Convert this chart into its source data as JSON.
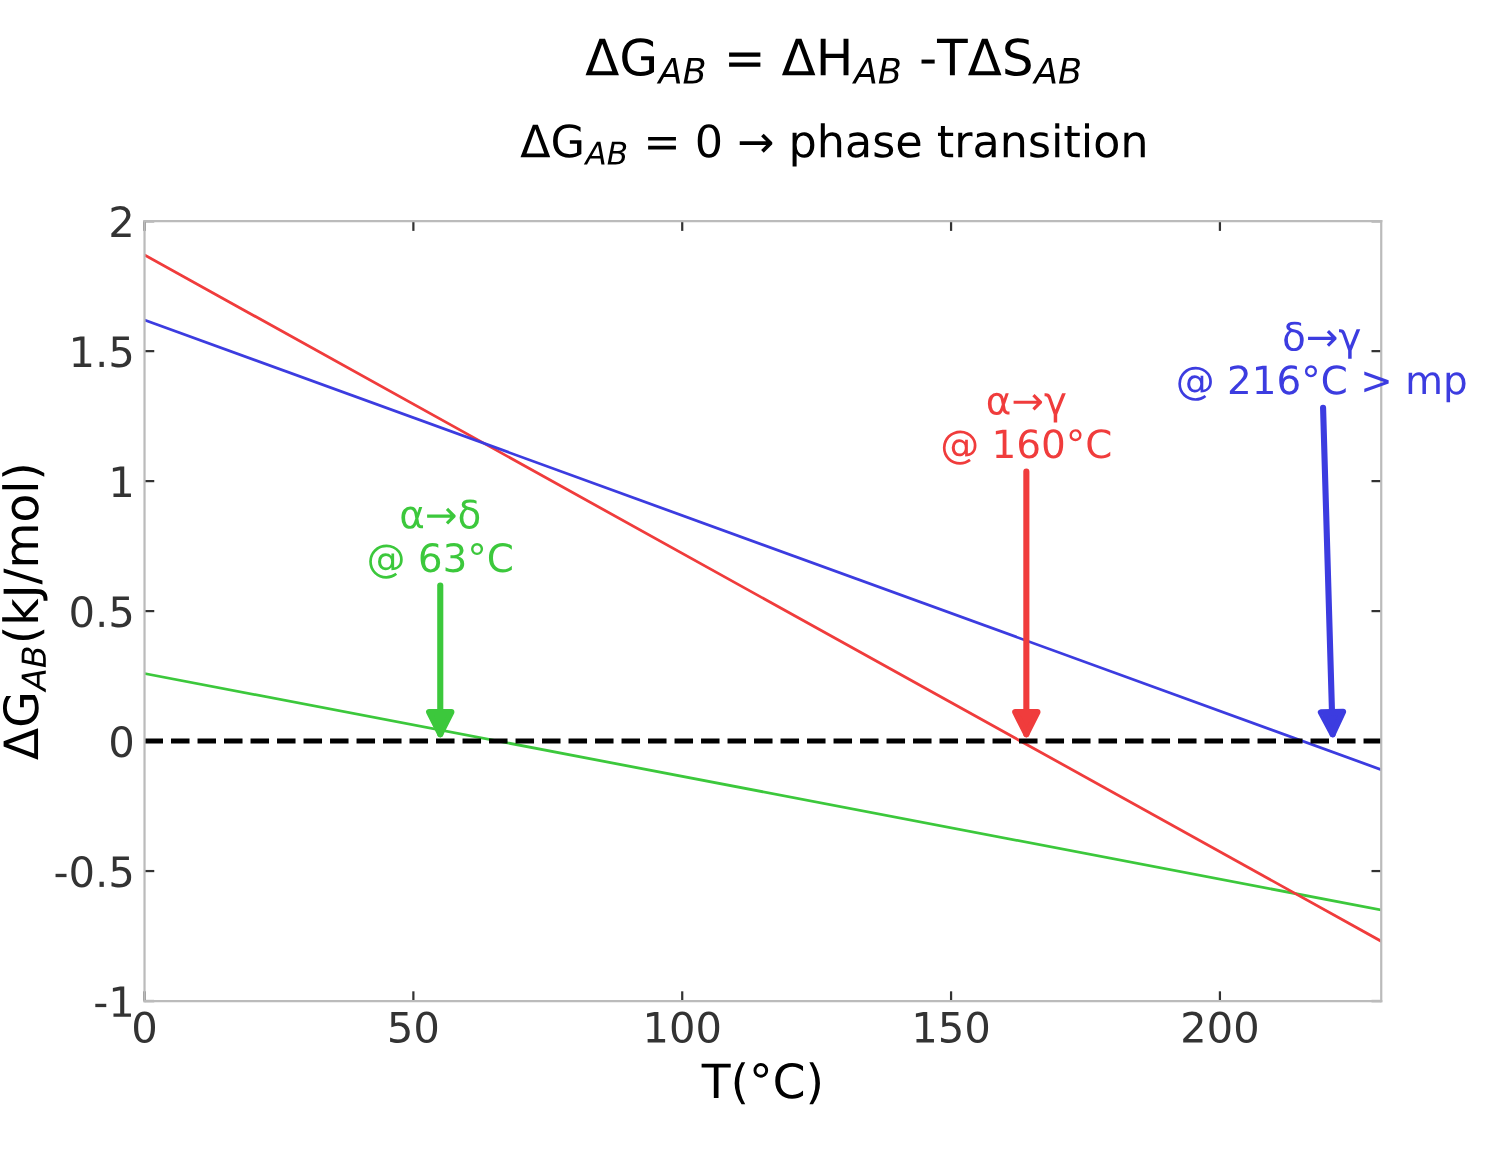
{
  "chart_data": {
    "type": "line",
    "title": "ΔG$_{AB}$ = ΔH$_{AB}$ -TΔS$_{AB}$",
    "subtitle": "ΔG$_{AB}$ = 0 → phase transition",
    "xlabel": "T(°C)",
    "ylabel": "ΔG$_{AB}$(kJ/mol)",
    "x": [
      0,
      230
    ],
    "series": [
      {
        "color": "#3cc83c",
        "values": [
          0.26,
          -0.65
        ]
      },
      {
        "color": "#f03c3c",
        "values": [
          1.87,
          -0.77
        ]
      },
      {
        "color": "#3c3ce0",
        "values": [
          1.62,
          -0.11
        ]
      }
    ],
    "annotations": [
      {
        "text": "α→δ\n@ 63°C",
        "x": 55,
        "y": 0
      },
      {
        "text": "α→γ\n@ 160°C",
        "x": 164,
        "y": 0
      },
      {
        "text": "δ→γ\n@ 216°C > mp",
        "x": 221,
        "y": 0
      }
    ],
    "ref_lines": [
      {
        "axis": "y",
        "value": 0,
        "color": "#000000",
        "line_style": "dashed"
      }
    ],
    "xlim": [
      0,
      230
    ],
    "ylim": [
      -1,
      2
    ],
    "xticks": [
      0,
      50,
      100,
      150,
      200
    ],
    "yticks": [
      -1,
      -0.5,
      0,
      0.5,
      1,
      1.5,
      2
    ],
    "grid": false,
    "legend": false,
    "marker": "none",
    "line_style": "solid"
  }
}
